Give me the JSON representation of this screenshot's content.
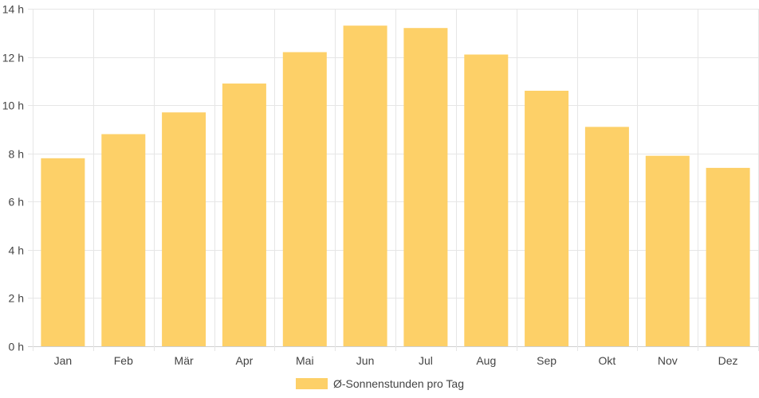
{
  "chart_data": {
    "type": "bar",
    "categories": [
      "Jan",
      "Feb",
      "Mär",
      "Apr",
      "Mai",
      "Jun",
      "Jul",
      "Aug",
      "Sep",
      "Okt",
      "Nov",
      "Dez"
    ],
    "series": [
      {
        "name": "Ø-Sonnenstunden pro Tag",
        "values": [
          7.8,
          8.8,
          9.7,
          10.9,
          12.2,
          13.3,
          13.2,
          12.1,
          10.6,
          9.1,
          7.9,
          7.4
        ],
        "color": "#fdd068"
      }
    ],
    "y_ticks": [
      "0 h",
      "2 h",
      "4 h",
      "6 h",
      "8 h",
      "10 h",
      "12 h",
      "14 h"
    ],
    "ylim": [
      0,
      14
    ],
    "y_tick_step": 2,
    "grid": true,
    "grid_color": "#e6e6e6",
    "legend_position": "bottom-center"
  }
}
